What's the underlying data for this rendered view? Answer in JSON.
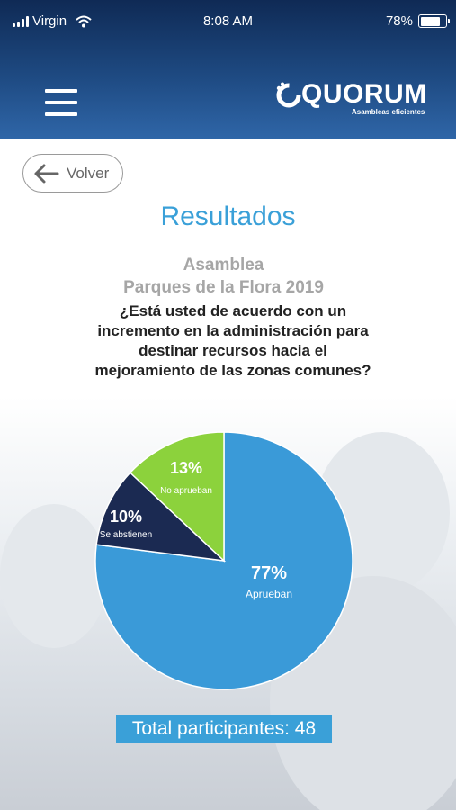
{
  "status_bar": {
    "carrier": "Virgin",
    "time": "8:08 AM",
    "battery": "78%",
    "battery_level": 0.78
  },
  "header": {
    "logo_text": "QUORUM",
    "logo_tagline": "Asambleas eficientes",
    "menu_icon": "hamburger-menu-icon"
  },
  "back_button": {
    "label": "Volver",
    "icon": "arrow-left-icon"
  },
  "page_title": "Resultados",
  "assembly": {
    "line1": "Asamblea",
    "line2": "Parques de la Flora 2019"
  },
  "question": "¿Está usted de acuerdo con un incremento en la administración para destinar recursos hacia el mejoramiento de las zonas comunes?",
  "chart_data": {
    "type": "pie",
    "slices": [
      {
        "label": "Aprueban",
        "value": 77,
        "display": "77%",
        "color": "#3a9ad8"
      },
      {
        "label": "Se abstienen",
        "value": 10,
        "display": "10%",
        "color": "#1b2a52"
      },
      {
        "label": "No aprueban",
        "value": 13,
        "display": "13%",
        "color": "#8cd23c"
      }
    ]
  },
  "total": "Total participantes: 48"
}
